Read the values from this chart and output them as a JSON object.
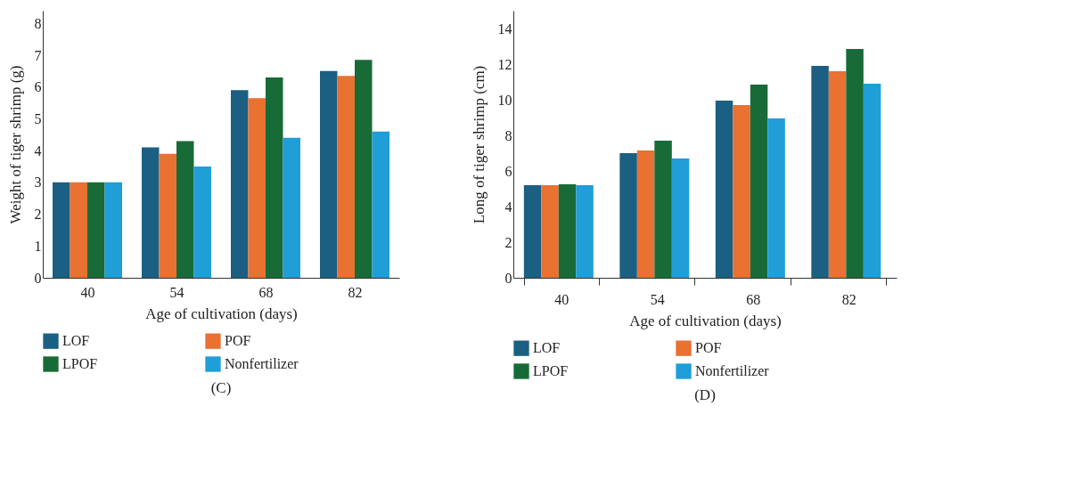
{
  "chart_data": [
    {
      "type": "bar",
      "title": "(C)",
      "xlabel": "Age of cultivation (days)",
      "ylabel": "Weight of tiger shrimp (g)",
      "categories": [
        "40",
        "54",
        "68",
        "82"
      ],
      "series": [
        {
          "name": "LOF",
          "color": "#1b6082",
          "values": [
            3,
            4.1,
            5.9,
            6.5
          ]
        },
        {
          "name": "POF",
          "color": "#e97132",
          "values": [
            3,
            3.9,
            5.65,
            6.35
          ]
        },
        {
          "name": "LPOF",
          "color": "#186b37",
          "values": [
            3,
            4.3,
            6.3,
            6.85
          ]
        },
        {
          "name": "Nonfertilizer",
          "color": "#1f9ed8",
          "values": [
            3,
            3.5,
            4.4,
            4.6
          ]
        }
      ],
      "ylim": [
        0,
        8.4
      ],
      "yticks": [
        0,
        1,
        2,
        3,
        4,
        5,
        6,
        7,
        8
      ],
      "grid": false,
      "legend": "bottom left"
    },
    {
      "type": "bar",
      "title": "(D)",
      "xlabel": "Age of cultivation (days)",
      "ylabel": "Long of tiger shrimp (cm)",
      "categories": [
        "40",
        "54",
        "68",
        "82"
      ],
      "series": [
        {
          "name": "LOF",
          "color": "#1b6082",
          "values": [
            5.2,
            7,
            9.95,
            11.9
          ]
        },
        {
          "name": "POF",
          "color": "#e97132",
          "values": [
            5.2,
            7.15,
            9.7,
            11.6
          ]
        },
        {
          "name": "LPOF",
          "color": "#186b37",
          "values": [
            5.25,
            7.7,
            10.85,
            12.85
          ]
        },
        {
          "name": "Nonfertilizer",
          "color": "#1f9ed8",
          "values": [
            5.2,
            6.7,
            8.95,
            10.9
          ]
        }
      ],
      "ylim": [
        0,
        15
      ],
      "yticks": [
        0,
        2,
        4,
        6,
        8,
        10,
        12,
        14
      ],
      "grid": false,
      "legend": "bottom left"
    }
  ]
}
